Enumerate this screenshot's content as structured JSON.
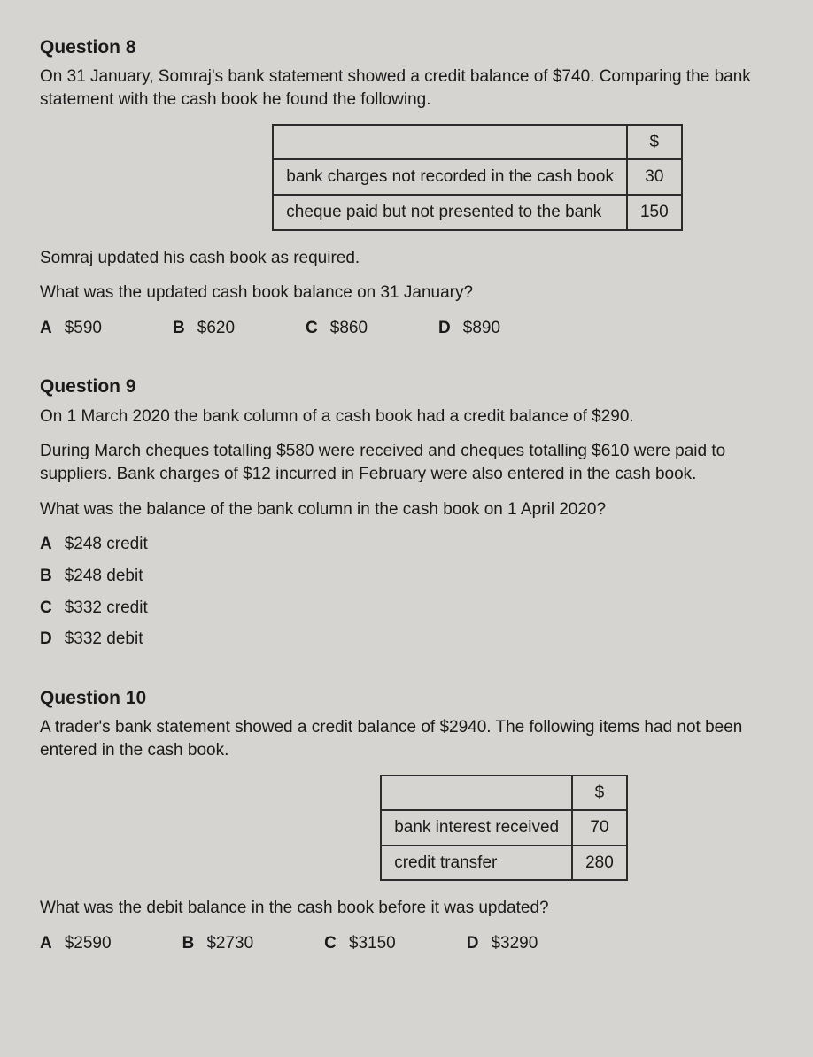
{
  "q8": {
    "title": "Question 8",
    "intro": "On 31 January, Somraj's bank statement showed a credit balance of $740. Comparing the bank statement with the cash book he found the following.",
    "table": {
      "header_amount": "$",
      "rows": [
        {
          "label": "bank charges not recorded in the cash book",
          "value": "30"
        },
        {
          "label": "cheque paid but not presented to the bank",
          "value": "150"
        }
      ]
    },
    "line1": "Somraj updated his cash book as required.",
    "line2": "What was the updated cash book balance on 31 January?",
    "options": [
      {
        "letter": "A",
        "text": "$590"
      },
      {
        "letter": "B",
        "text": "$620"
      },
      {
        "letter": "C",
        "text": "$860"
      },
      {
        "letter": "D",
        "text": "$890"
      }
    ]
  },
  "q9": {
    "title": "Question 9",
    "p1": "On 1 March 2020 the bank column of a cash book had a credit balance of $290.",
    "p2": "During March cheques totalling $580 were received and cheques totalling $610 were paid to suppliers. Bank charges of $12 incurred in February were also entered in the cash book.",
    "p3": "What was the balance of the bank column in the cash book on 1 April 2020?",
    "options": [
      {
        "letter": "A",
        "text": "$248 credit"
      },
      {
        "letter": "B",
        "text": "$248 debit"
      },
      {
        "letter": "C",
        "text": "$332 credit"
      },
      {
        "letter": "D",
        "text": "$332 debit"
      }
    ]
  },
  "q10": {
    "title": "Question 10",
    "intro": "A trader's bank statement showed a credit balance of $2940. The following items had not been entered in the cash book.",
    "table": {
      "header_amount": "$",
      "rows": [
        {
          "label": "bank interest received",
          "value": "70"
        },
        {
          "label": "credit transfer",
          "value": "280"
        }
      ]
    },
    "line1": "What was the debit balance in the cash book before it was updated?",
    "options": [
      {
        "letter": "A",
        "text": "$2590"
      },
      {
        "letter": "B",
        "text": "$2730"
      },
      {
        "letter": "C",
        "text": "$3150"
      },
      {
        "letter": "D",
        "text": "$3290"
      }
    ]
  }
}
